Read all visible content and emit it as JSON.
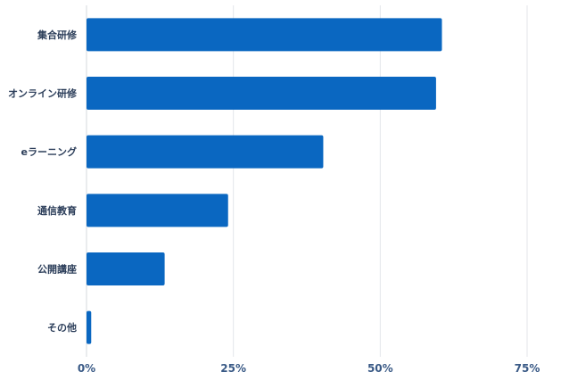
{
  "chart_data": {
    "type": "bar",
    "orientation": "horizontal",
    "categories": [
      "集合研修",
      "オンライン研修",
      "eラーニング",
      "通信教育",
      "公開講座",
      "その他"
    ],
    "values": [
      60.5,
      59.5,
      40.3,
      24.1,
      13.3,
      0.8
    ],
    "unit": "%",
    "xlim": [
      0,
      75
    ],
    "xticks": [
      0,
      25,
      50,
      75
    ],
    "xtick_labels": [
      "0%",
      "25%",
      "50%",
      "75%"
    ],
    "grid": true,
    "legend": "none",
    "title": "",
    "xlabel": "",
    "ylabel": "",
    "colors": {
      "bar": "#0a67c1",
      "grid": "#e3e6ea",
      "tick_text": "#3a5a86",
      "label_text": "#2c3e5a"
    }
  }
}
